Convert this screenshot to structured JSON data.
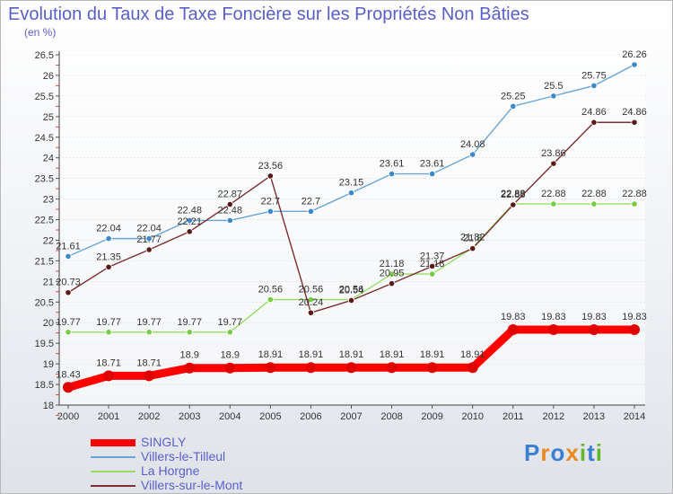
{
  "chart_data": {
    "type": "line",
    "title": "Evolution du Taux de Taxe Foncière sur les Propriétés Non Bâties",
    "unit_label": "(en %)",
    "x": [
      "2000",
      "2001",
      "2002",
      "2003",
      "2004",
      "2005",
      "2006",
      "2007",
      "2008",
      "2009",
      "2010",
      "2011",
      "2012",
      "2013",
      "2014"
    ],
    "ylim": [
      18,
      26.5
    ],
    "yticks": [
      "18",
      "18.5",
      "19",
      "19.5",
      "20",
      "20.5",
      "21",
      "21.5",
      "22",
      "22.5",
      "23",
      "23.5",
      "24",
      "24.5",
      "25",
      "25.5",
      "26",
      "26.5"
    ],
    "legend_position": "bottom-left",
    "series": [
      {
        "name": "SINGLY",
        "color": "#ff0000",
        "point_color": "#e00000",
        "values": [
          18.43,
          18.71,
          18.71,
          18.9,
          18.9,
          18.91,
          18.91,
          18.91,
          18.91,
          18.91,
          18.91,
          19.83,
          19.83,
          19.83,
          19.83
        ],
        "labels": [
          "18.43",
          "18.71",
          "18.71",
          "18.9",
          "18.9",
          "18.91",
          "18.91",
          "18.91",
          "18.91",
          "18.91",
          "18.91",
          "19.83",
          "19.83",
          "19.83",
          "19.83"
        ]
      },
      {
        "name": "Villers-le-Tilleul",
        "color": "#6aa5d8",
        "point_color": "#3c88c8",
        "values": [
          21.61,
          22.04,
          22.04,
          22.48,
          22.48,
          22.7,
          22.7,
          23.15,
          23.61,
          23.61,
          24.08,
          25.25,
          25.5,
          25.75,
          26.26
        ],
        "labels": [
          "21.61",
          "22.04",
          "22.04",
          "22.48",
          "22.48",
          "22.7",
          "22.7",
          "23.15",
          "23.61",
          "23.61",
          "24.08",
          "25.25",
          "25.5",
          "25.75",
          "26.26"
        ]
      },
      {
        "name": "La Horgne",
        "color": "#99dd66",
        "point_color": "#77cc44",
        "values": [
          19.77,
          19.77,
          19.77,
          19.77,
          19.77,
          20.56,
          20.56,
          20.56,
          21.18,
          21.18,
          21.82,
          22.88,
          22.88,
          22.88,
          22.88
        ],
        "labels": [
          "19.77",
          "19.77",
          "19.77",
          "19.77",
          "19.77",
          "20.56",
          "20.56",
          "20.56",
          "21.18",
          "21.18",
          "21.82",
          "22.88",
          "22.88",
          "22.88",
          "22.88"
        ]
      },
      {
        "name": "Villers-sur-le-Mont",
        "color": "#7a2e2e",
        "point_color": "#5a1a1a",
        "values": [
          20.73,
          21.35,
          21.77,
          22.21,
          22.87,
          23.56,
          20.24,
          20.54,
          20.95,
          21.37,
          21.8,
          22.86,
          23.86,
          24.86,
          24.86
        ],
        "labels": [
          "20.73",
          "21.35",
          "21.77",
          "22.21",
          "22.87",
          "23.56",
          "20.24",
          "20.54",
          "20.95",
          "21.37",
          "21.8",
          "22.86",
          "23.86",
          "24.86",
          "24.86"
        ]
      }
    ]
  },
  "brand": {
    "logo_text": "Proxiti"
  }
}
